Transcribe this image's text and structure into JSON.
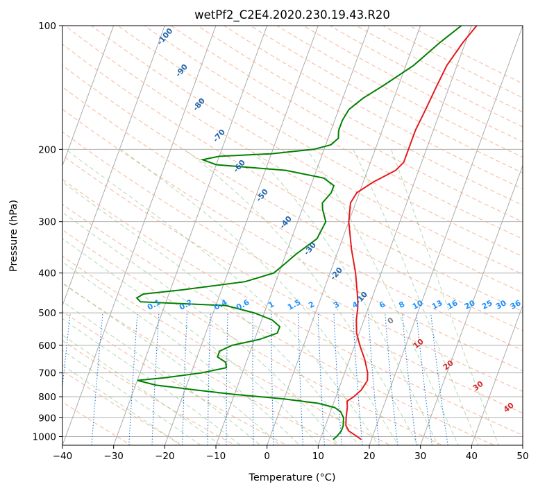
{
  "chart_data": {
    "type": "line",
    "title": "wetPf2_C2E4.2020.230.19.43.R20",
    "xlabel": "Temperature (°C)",
    "ylabel": "Pressure (hPa)",
    "xlim": [
      -40,
      50
    ],
    "ylim": [
      1050,
      100
    ],
    "y_scale": "log",
    "x_ticks": [
      -40,
      -30,
      -20,
      -10,
      0,
      10,
      20,
      30,
      40,
      50
    ],
    "y_ticks": [
      100,
      200,
      300,
      400,
      500,
      600,
      700,
      800,
      900,
      1000
    ],
    "grid": true,
    "series": [
      {
        "color": "#e41a1c",
        "points": [
          [
            1017,
            18.0
          ],
          [
            1000,
            17.0
          ],
          [
            970,
            15.0
          ],
          [
            940,
            14.0
          ],
          [
            900,
            13.5
          ],
          [
            850,
            13.0
          ],
          [
            820,
            12.5
          ],
          [
            800,
            13.5
          ],
          [
            770,
            14.5
          ],
          [
            730,
            15.0
          ],
          [
            700,
            14.5
          ],
          [
            650,
            13.0
          ],
          [
            600,
            11.0
          ],
          [
            560,
            9.5
          ],
          [
            520,
            8.5
          ],
          [
            490,
            8.0
          ],
          [
            470,
            7.5
          ],
          [
            440,
            6.5
          ],
          [
            400,
            5.0
          ],
          [
            350,
            2.5
          ],
          [
            300,
            0.0
          ],
          [
            270,
            -1.0
          ],
          [
            255,
            -0.5
          ],
          [
            240,
            2.0
          ],
          [
            225,
            5.5
          ],
          [
            215,
            6.5
          ],
          [
            200,
            6.5
          ],
          [
            180,
            6.5
          ],
          [
            160,
            7.0
          ],
          [
            140,
            7.5
          ],
          [
            125,
            8.0
          ],
          [
            110,
            9.5
          ],
          [
            100,
            11.0
          ]
        ]
      },
      {
        "color": "#008000",
        "points": [
          [
            1017,
            12.5
          ],
          [
            1000,
            13.0
          ],
          [
            970,
            13.5
          ],
          [
            940,
            13.5
          ],
          [
            900,
            13.0
          ],
          [
            870,
            12.0
          ],
          [
            850,
            10.5
          ],
          [
            830,
            7.0
          ],
          [
            810,
            0.0
          ],
          [
            790,
            -10.0
          ],
          [
            770,
            -18.0
          ],
          [
            750,
            -26.0
          ],
          [
            730,
            -30.0
          ],
          [
            720,
            -25.0
          ],
          [
            700,
            -18.0
          ],
          [
            680,
            -13.5
          ],
          [
            660,
            -14.0
          ],
          [
            640,
            -16.0
          ],
          [
            620,
            -16.0
          ],
          [
            600,
            -14.0
          ],
          [
            580,
            -9.0
          ],
          [
            560,
            -6.0
          ],
          [
            540,
            -6.0
          ],
          [
            520,
            -8.0
          ],
          [
            500,
            -12.0
          ],
          [
            480,
            -18.0
          ],
          [
            470,
            -35.0
          ],
          [
            460,
            -36.0
          ],
          [
            450,
            -35.0
          ],
          [
            440,
            -28.0
          ],
          [
            420,
            -16.0
          ],
          [
            400,
            -11.0
          ],
          [
            380,
            -9.5
          ],
          [
            360,
            -8.0
          ],
          [
            330,
            -5.0
          ],
          [
            300,
            -4.5
          ],
          [
            280,
            -6.0
          ],
          [
            270,
            -6.5
          ],
          [
            255,
            -5.5
          ],
          [
            245,
            -5.5
          ],
          [
            235,
            -8.0
          ],
          [
            225,
            -16.0
          ],
          [
            218,
            -30.0
          ],
          [
            212,
            -33.0
          ],
          [
            208,
            -30.0
          ],
          [
            205,
            -20.0
          ],
          [
            200,
            -12.0
          ],
          [
            195,
            -9.0
          ],
          [
            188,
            -8.0
          ],
          [
            180,
            -8.5
          ],
          [
            170,
            -8.5
          ],
          [
            160,
            -8.0
          ],
          [
            150,
            -6.0
          ],
          [
            140,
            -3.0
          ],
          [
            125,
            1.5
          ],
          [
            110,
            5.0
          ],
          [
            100,
            8.0
          ]
        ]
      }
    ],
    "dry_adiabat_labels": [
      "-100",
      "-90",
      "-80",
      "-70",
      "-60",
      "-50",
      "-40",
      "-30",
      "-20",
      "-10"
    ],
    "mixing_ratio_labels": [
      "0.1",
      "0.2",
      "0.4",
      "0.6",
      "1",
      "1.5",
      "2",
      "3",
      "4",
      "6",
      "8",
      "10",
      "13",
      "16",
      "20",
      "25",
      "30",
      "36"
    ],
    "moist_adiabat_labels": [
      "0",
      "10",
      "20",
      "30",
      "40"
    ]
  }
}
